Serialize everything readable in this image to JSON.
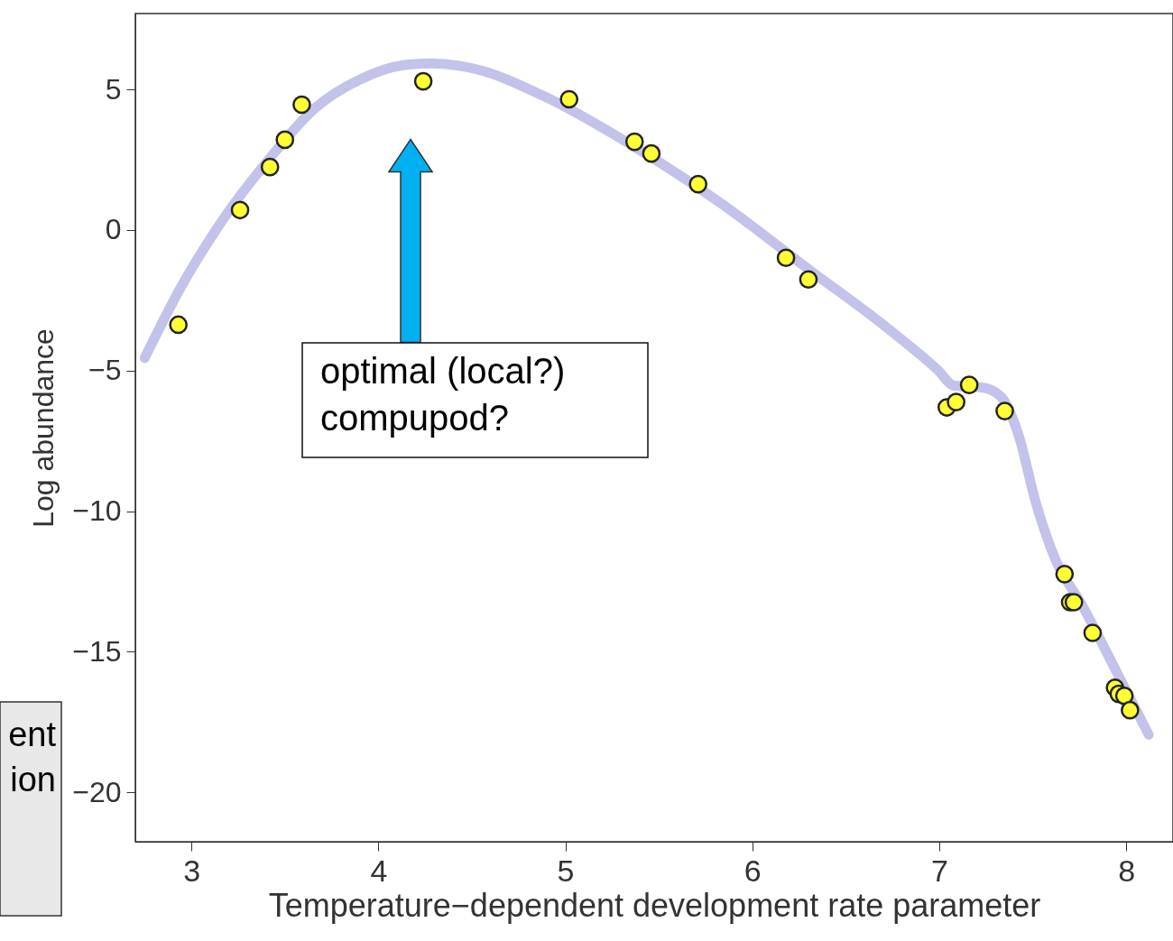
{
  "chart_data": {
    "type": "scatter",
    "xlabel": "Temperature−dependent development rate parameter",
    "ylabel": "Log abundance",
    "xlim": [
      2.7,
      8.25
    ],
    "ylim": [
      -21.76,
      7.7
    ],
    "xticks": [
      3,
      4,
      5,
      6,
      7,
      8
    ],
    "yticks": [
      -20,
      -15,
      -10,
      -5,
      0,
      5
    ],
    "grid": false,
    "series": [
      {
        "type": "line",
        "color": "#9999dd",
        "line_style": "solid",
        "x": [
          2.75,
          2.94,
          3.18,
          3.42,
          3.66,
          3.9,
          4.14,
          4.28,
          4.53,
          4.87,
          5.35,
          5.83,
          6.31,
          6.7,
          6.99,
          7.08,
          7.23,
          7.33,
          7.42,
          7.52,
          7.62,
          7.76,
          7.96,
          8.12
        ],
        "values": [
          -4.55,
          -2.08,
          0.48,
          2.56,
          4.33,
          5.35,
          5.87,
          5.93,
          5.71,
          4.81,
          3.04,
          0.96,
          -1.44,
          -3.37,
          -4.97,
          -5.54,
          -5.6,
          -5.93,
          -7.21,
          -9.78,
          -11.7,
          -13.3,
          -15.87,
          -17.95
        ]
      },
      {
        "type": "scatter",
        "color": "#ffff33",
        "marker": "circle",
        "x": [
          2.93,
          3.26,
          3.42,
          3.5,
          3.59,
          4.24,
          5.02,
          5.37,
          5.46,
          5.71,
          6.18,
          6.3,
          7.04,
          7.09,
          7.16,
          7.35,
          7.67,
          7.7,
          7.72,
          7.82,
          7.94,
          7.96,
          7.99,
          8.02
        ],
        "values": [
          -3.37,
          0.71,
          2.24,
          3.21,
          4.46,
          5.29,
          4.65,
          3.14,
          2.72,
          1.63,
          -0.99,
          -1.76,
          -6.31,
          -6.12,
          -5.51,
          -6.44,
          -12.24,
          -13.24,
          -13.24,
          -14.33,
          -16.28,
          -16.5,
          -16.57,
          -17.08
        ]
      }
    ],
    "annotations": [
      "optimal (local?)\ncompupod?",
      "ent\nion"
    ]
  }
}
